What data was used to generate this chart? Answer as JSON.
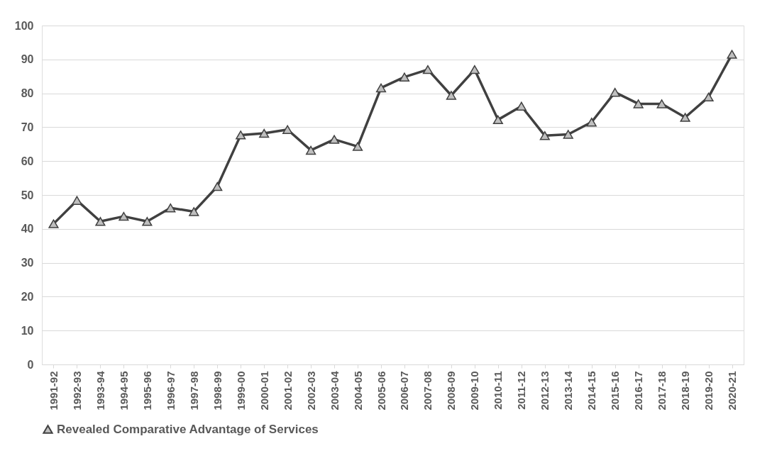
{
  "chart_data": {
    "type": "line",
    "categories": [
      "1991-92",
      "1992-93",
      "1993-94",
      "1994-95",
      "1995-96",
      "1996-97",
      "1997-98",
      "1998-99",
      "1999-00",
      "2000-01",
      "2001-02",
      "2002-03",
      "2003-04",
      "2004-05",
      "2005-06",
      "2006-07",
      "2007-08",
      "2008-09",
      "2009-10",
      "2010-11",
      "2011-12",
      "2012-13",
      "2013-14",
      "2014-15",
      "2015-16",
      "2016-17",
      "2017-18",
      "2018-19",
      "2019-20",
      "2020-21"
    ],
    "series": [
      {
        "name": "Revealed Comparative Advantage of Services",
        "color": "#404040",
        "values": [
          41.5,
          48.4,
          42.2,
          43.7,
          42.2,
          46.2,
          45.1,
          52.5,
          67.7,
          68.2,
          69.3,
          63.2,
          66.4,
          64.3,
          81.6,
          84.8,
          87.0,
          79.4,
          87.0,
          72.2,
          76.2,
          67.5,
          67.9,
          71.5,
          80.3,
          76.9,
          76.9,
          72.9,
          78.9,
          91.5
        ]
      }
    ],
    "ylim": [
      0,
      100
    ],
    "yticks": [
      0,
      10,
      20,
      30,
      40,
      50,
      60,
      70,
      80,
      90,
      100
    ],
    "grid": "y",
    "legend": "bottom",
    "marker": "triangle",
    "line_style": "solid"
  }
}
